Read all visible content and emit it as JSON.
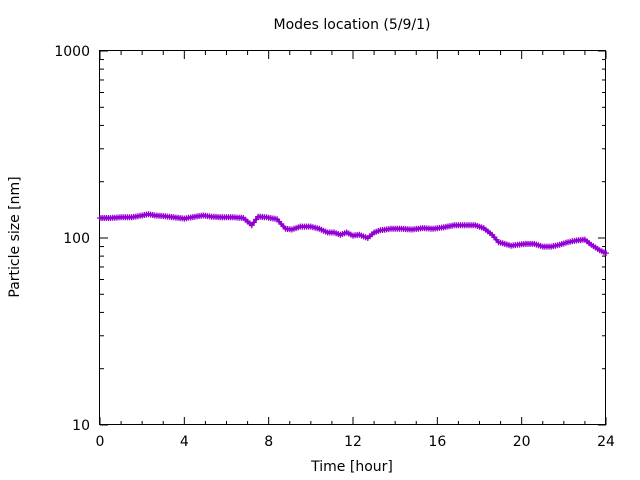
{
  "chart_data": {
    "type": "line",
    "title": "Modes location (5/9/1)",
    "xlabel": "Time [hour]",
    "ylabel": "Particle size [nm]",
    "xlim": [
      0,
      24
    ],
    "ylim": [
      10,
      1000
    ],
    "yscale": "log",
    "grid": false,
    "legend": "none",
    "x_ticks": [
      0,
      4,
      8,
      12,
      16,
      20,
      24
    ],
    "x_tick_labels": [
      "0",
      "4",
      "8",
      "12",
      "16",
      "20",
      "24"
    ],
    "y_ticks": [
      10,
      100,
      1000
    ],
    "y_tick_labels": [
      "10",
      "100",
      "1000"
    ],
    "series": [
      {
        "color": "#9400d3",
        "marker": "plus",
        "x": [
          0,
          0.5,
          1,
          1.5,
          2,
          2.3,
          2.6,
          3,
          3.5,
          4,
          4.5,
          4.9,
          5.3,
          5.8,
          6.3,
          6.8,
          7.2,
          7.5,
          7.9,
          8.4,
          8.8,
          9.1,
          9.5,
          10,
          10.4,
          10.8,
          11.1,
          11.4,
          11.7,
          12,
          12.3,
          12.7,
          13,
          13.3,
          13.8,
          14.3,
          14.8,
          15.3,
          15.8,
          16.3,
          16.8,
          17.3,
          17.8,
          18.2,
          18.6,
          18.9,
          19.2,
          19.5,
          19.8,
          20.2,
          20.6,
          21,
          21.4,
          21.8,
          22.2,
          22.6,
          23,
          23.3,
          23.7,
          24
        ],
        "values": [
          128,
          128,
          129,
          129,
          132,
          134,
          132,
          131,
          129,
          127,
          130,
          132,
          130,
          129,
          129,
          128,
          117,
          130,
          129,
          126,
          112,
          111,
          115,
          115,
          112,
          107,
          107,
          104,
          107,
          103,
          104,
          100,
          107,
          110,
          112,
          112,
          111,
          113,
          112,
          114,
          117,
          117,
          117,
          113,
          104,
          95,
          93,
          91,
          92,
          93,
          93,
          90,
          90,
          92,
          95,
          97,
          98,
          92,
          86,
          83
        ]
      }
    ]
  }
}
